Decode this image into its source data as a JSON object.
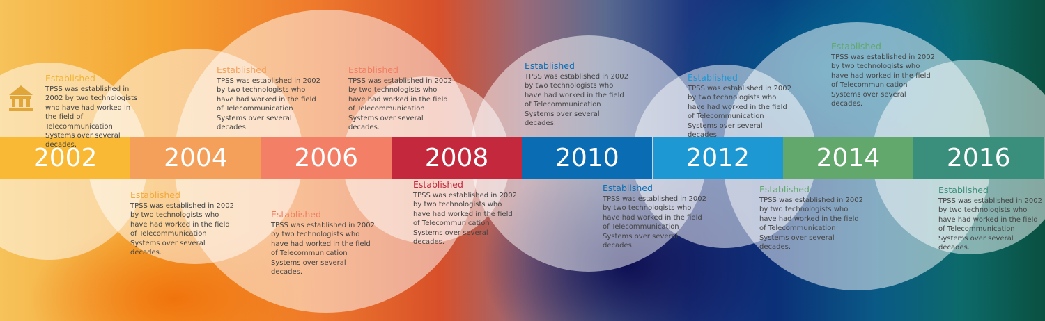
{
  "timeline": {
    "years": [
      "2002",
      "2004",
      "2006",
      "2008",
      "2010",
      "2012",
      "2014",
      "2016"
    ],
    "blocks": [
      {
        "heading": "Established",
        "text": "TPSS was established in 2002 by two technologists who have had worked in the field of Telecommunication Systems over several decades."
      },
      {
        "heading": "Established",
        "text": "TPSS was established in 2002 by two technologists who have had worked in the field of Telecommunication Systems over several decades."
      },
      {
        "heading": "Established",
        "text": "TPSS was established in 2002 by two technologists who have had worked in the field of Telecommunication Systems over several decades."
      },
      {
        "heading": "Established",
        "text": "TPSS was established in 2002 by two technologists who have had worked in the field of Telecommunication Systems over several decades."
      },
      {
        "heading": "Established",
        "text": "TPSS was established in 2002 by two technologists who have had worked in the field of Telecommunication Systems over several decades."
      },
      {
        "heading": "Established",
        "text": "TPSS was established in 2002 by two technologists who have had worked in the field of Telecommunication Systems over several decades."
      },
      {
        "heading": "Established",
        "text": "TPSS was established in 2002 by two technologists who have had worked in the field of Telecommunication Systems over several decades."
      },
      {
        "heading": "Established",
        "text": "TPSS was established in 2002 by two technologists who have had worked in the field of Telecommunication Systems over several decades."
      },
      {
        "heading": "Established",
        "text": "TPSS was established in 2002 by two technologists who have had worked in the field of Telecommunication Systems over several decades."
      },
      {
        "heading": "Established",
        "text": "TPSS was established in 2002 by two technologists who have had worked in the field of Telecommunication Systems over several decades."
      },
      {
        "heading": "Established",
        "text": "TPSS was established in 2002 by two technologists who have had worked in the field of Telecommunication Systems over several decades."
      },
      {
        "heading": "Established",
        "text": "TPSS was established in 2002 by two technologists who have had worked in the field of Telecommunication Systems over several decades."
      }
    ]
  }
}
